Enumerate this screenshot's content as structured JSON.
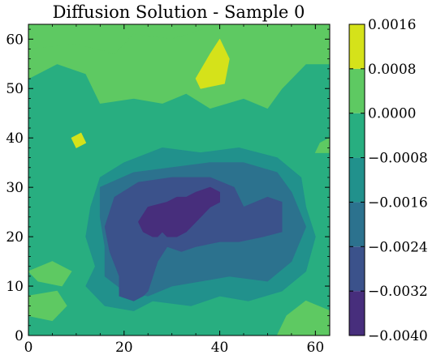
{
  "chart_data": {
    "type": "heatmap",
    "title": "Diffusion Solution - Sample 0",
    "xlabel": "",
    "ylabel": "",
    "xlim": [
      0,
      63
    ],
    "ylim": [
      0,
      63
    ],
    "x_ticks": [
      "0",
      "20",
      "40",
      "60"
    ],
    "x_tick_values": [
      0,
      20,
      40,
      60
    ],
    "y_ticks": [
      "0",
      "10",
      "20",
      "30",
      "40",
      "50",
      "60"
    ],
    "y_tick_values": [
      0,
      10,
      20,
      30,
      40,
      50,
      60
    ],
    "colorbar": {
      "levels": [
        -0.004,
        -0.0032,
        -0.0024,
        -0.0016,
        -0.0008,
        0.0,
        0.0008,
        0.0016
      ],
      "tick_labels": [
        "−0.0040",
        "−0.0032",
        "−0.0024",
        "−0.0016",
        "−0.0008",
        "0.0000",
        "0.0008",
        "0.0016"
      ],
      "colors": [
        "#472e7c",
        "#3b528b",
        "#2c728e",
        "#21918c",
        "#28ae80",
        "#5ec962",
        "#d5e21a"
      ]
    },
    "regions": [
      {
        "level_band": [
          -0.0008,
          0.0
        ],
        "polygon": [
          [
            0,
            0
          ],
          [
            63,
            0
          ],
          [
            63,
            63
          ],
          [
            0,
            63
          ]
        ]
      },
      {
        "level_band": [
          0.0,
          0.0008
        ],
        "polygon": [
          [
            0,
            58
          ],
          [
            10,
            59
          ],
          [
            18,
            57
          ],
          [
            22,
            61
          ],
          [
            30,
            60
          ],
          [
            40,
            63
          ],
          [
            0,
            63
          ]
        ]
      },
      {
        "level_band": [
          0.0,
          0.0008
        ],
        "polygon": [
          [
            0,
            52
          ],
          [
            6,
            55
          ],
          [
            12,
            53
          ],
          [
            15,
            47
          ],
          [
            22,
            48
          ],
          [
            28,
            47
          ],
          [
            33,
            49
          ],
          [
            38,
            46
          ],
          [
            45,
            48
          ],
          [
            50,
            46
          ],
          [
            53,
            50
          ],
          [
            58,
            55
          ],
          [
            63,
            55
          ],
          [
            63,
            63
          ],
          [
            40,
            63
          ],
          [
            30,
            60
          ],
          [
            22,
            61
          ],
          [
            18,
            57
          ],
          [
            10,
            59
          ],
          [
            0,
            58
          ]
        ]
      },
      {
        "level_band": [
          0.0,
          0.0008
        ],
        "polygon": [
          [
            52,
            0
          ],
          [
            63,
            0
          ],
          [
            63,
            5
          ],
          [
            58,
            7
          ],
          [
            54,
            4
          ]
        ]
      },
      {
        "level_band": [
          0.0,
          0.0008
        ],
        "polygon": [
          [
            0,
            4
          ],
          [
            5,
            3
          ],
          [
            8,
            6
          ],
          [
            6,
            9
          ],
          [
            0,
            8
          ]
        ]
      },
      {
        "level_band": [
          0.0,
          0.0008
        ],
        "polygon": [
          [
            0,
            13
          ],
          [
            5,
            15
          ],
          [
            9,
            13
          ],
          [
            7,
            10
          ],
          [
            2,
            11
          ]
        ]
      },
      {
        "level_band": [
          0.0,
          0.0008
        ],
        "polygon": [
          [
            60,
            37
          ],
          [
            63,
            37
          ],
          [
            63,
            40
          ],
          [
            61,
            39
          ]
        ]
      },
      {
        "level_band": [
          0.0008,
          0.0016
        ],
        "polygon": [
          [
            35,
            52
          ],
          [
            38,
            57
          ],
          [
            40,
            60
          ],
          [
            42,
            56
          ],
          [
            41,
            51
          ],
          [
            36,
            50
          ]
        ]
      },
      {
        "level_band": [
          0.0008,
          0.0016
        ],
        "polygon": [
          [
            9,
            40
          ],
          [
            11,
            41
          ],
          [
            12,
            39
          ],
          [
            10,
            38
          ]
        ]
      },
      {
        "level_band": [
          -0.0016,
          -0.0008
        ],
        "polygon": [
          [
            15,
            32
          ],
          [
            20,
            35
          ],
          [
            28,
            38
          ],
          [
            36,
            37
          ],
          [
            44,
            38
          ],
          [
            52,
            36
          ],
          [
            57,
            32
          ],
          [
            58,
            26
          ],
          [
            60,
            20
          ],
          [
            58,
            13
          ],
          [
            53,
            9
          ],
          [
            46,
            7
          ],
          [
            40,
            8
          ],
          [
            34,
            6
          ],
          [
            26,
            7
          ],
          [
            22,
            5
          ],
          [
            16,
            6
          ],
          [
            12,
            10
          ],
          [
            14,
            14
          ],
          [
            12,
            20
          ],
          [
            13,
            26
          ]
        ]
      },
      {
        "level_band": [
          -0.0024,
          -0.0016
        ],
        "polygon": [
          [
            15,
            30
          ],
          [
            22,
            33
          ],
          [
            30,
            34
          ],
          [
            38,
            35
          ],
          [
            45,
            35
          ],
          [
            52,
            33
          ],
          [
            55,
            29
          ],
          [
            58,
            22
          ],
          [
            55,
            15
          ],
          [
            50,
            11
          ],
          [
            42,
            12
          ],
          [
            36,
            11
          ],
          [
            30,
            10
          ],
          [
            25,
            8
          ],
          [
            20,
            9
          ],
          [
            16,
            12
          ],
          [
            16,
            18
          ],
          [
            15,
            24
          ]
        ]
      },
      {
        "level_band": [
          -0.0032,
          -0.0024
        ],
        "polygon": [
          [
            18,
            28
          ],
          [
            23,
            31
          ],
          [
            30,
            32
          ],
          [
            38,
            32
          ],
          [
            43,
            30
          ],
          [
            45,
            26
          ],
          [
            50,
            28
          ],
          [
            53,
            27
          ],
          [
            53,
            21
          ],
          [
            49,
            20
          ],
          [
            44,
            19
          ],
          [
            40,
            19
          ],
          [
            35,
            18
          ],
          [
            32,
            17
          ],
          [
            29,
            18
          ],
          [
            27,
            15
          ],
          [
            25,
            9
          ],
          [
            24,
            8
          ],
          [
            22,
            7
          ],
          [
            19,
            8
          ],
          [
            19,
            12
          ],
          [
            17,
            17
          ],
          [
            16,
            22
          ]
        ]
      },
      {
        "level_band": [
          -0.004,
          -0.0032
        ],
        "polygon": [
          [
            23,
            23
          ],
          [
            25,
            26
          ],
          [
            29,
            27
          ],
          [
            31,
            28
          ],
          [
            33,
            28
          ],
          [
            35,
            29
          ],
          [
            38,
            30
          ],
          [
            40,
            29
          ],
          [
            40,
            27
          ],
          [
            38,
            26
          ],
          [
            35,
            23
          ],
          [
            33,
            21
          ],
          [
            31,
            20
          ],
          [
            29,
            20
          ],
          [
            28,
            21
          ],
          [
            27,
            20
          ],
          [
            26,
            20
          ],
          [
            24,
            21
          ]
        ]
      }
    ]
  }
}
